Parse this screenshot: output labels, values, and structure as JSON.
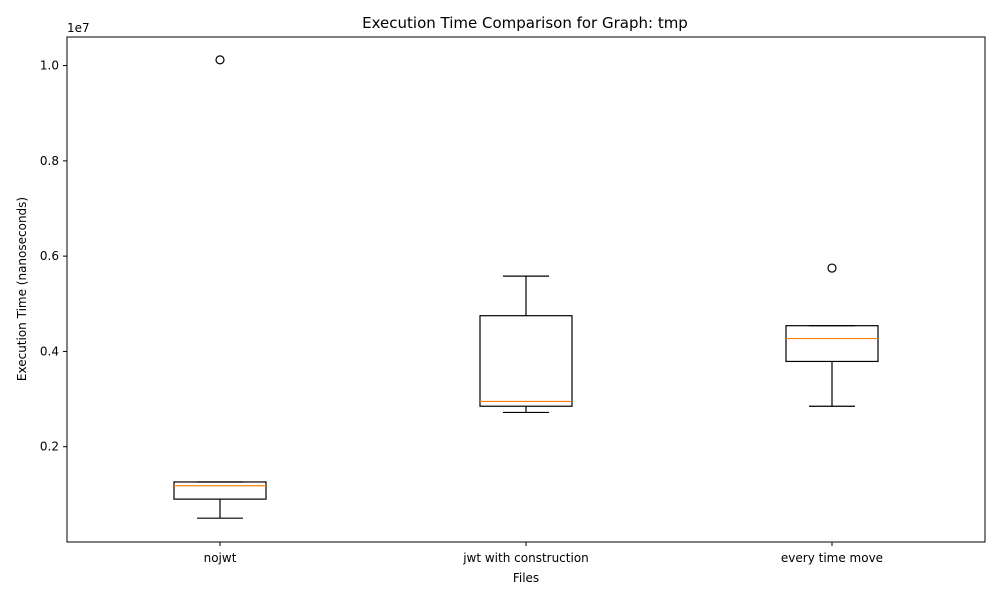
{
  "chart_data": {
    "type": "box",
    "title": "Execution Time Comparison for Graph: tmp",
    "xlabel": "Files",
    "ylabel": "Execution Time (nanoseconds)",
    "y_offset_label": "1e7",
    "y_tick_scale": 10000000,
    "ylim": [
      0,
      10600000
    ],
    "y_ticks": [
      2000000,
      4000000,
      6000000,
      8000000,
      10000000
    ],
    "y_tick_labels": [
      "0.2",
      "0.4",
      "0.6",
      "0.8",
      "1.0"
    ],
    "categories": [
      "nojwt",
      "jwt with construction",
      "every time move"
    ],
    "boxes": [
      {
        "whisker_low": 500000,
        "q1": 900000,
        "median": 1180000,
        "q3": 1260000,
        "whisker_high": 1260000,
        "outliers": [
          10120000
        ]
      },
      {
        "whisker_low": 2720000,
        "q1": 2850000,
        "median": 2950000,
        "q3": 4750000,
        "whisker_high": 5580000,
        "outliers": []
      },
      {
        "whisker_low": 2850000,
        "q1": 3790000,
        "median": 4270000,
        "q3": 4540000,
        "whisker_high": 4540000,
        "outliers": [
          5750000
        ]
      }
    ],
    "colors": {
      "box": "#000000",
      "median": "#ff7f0e",
      "outlier": "#000000"
    },
    "grid": false
  }
}
